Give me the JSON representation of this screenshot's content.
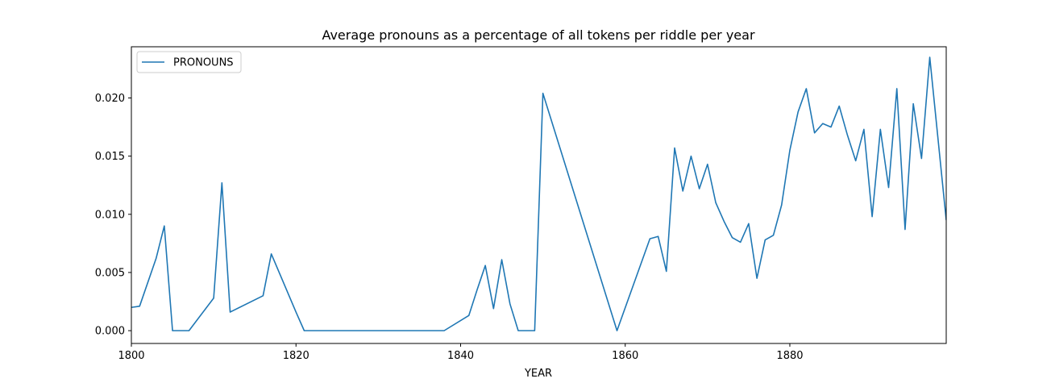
{
  "chart_data": {
    "type": "line",
    "title": "Average pronouns as a percentage of all tokens per riddle per year",
    "xlabel": "YEAR",
    "ylabel": "",
    "xlim": [
      1800,
      1899
    ],
    "ylim": [
      -0.0011,
      0.0244
    ],
    "x_ticks": [
      1800,
      1820,
      1840,
      1860,
      1880
    ],
    "y_ticks": [
      0.0,
      0.005,
      0.01,
      0.015,
      0.02
    ],
    "y_tick_labels": [
      "0.000",
      "0.005",
      "0.010",
      "0.015",
      "0.020"
    ],
    "grid": false,
    "legend": {
      "position": "top-left",
      "entries": [
        "PRONOUNS"
      ]
    },
    "colors": {
      "series": "#1f77b4"
    },
    "series": [
      {
        "name": "PRONOUNS",
        "x": [
          1800,
          1801,
          1803,
          1804,
          1805,
          1807,
          1810,
          1811,
          1812,
          1816,
          1817,
          1820,
          1821,
          1838,
          1841,
          1842,
          1843,
          1844,
          1845,
          1846,
          1847,
          1849,
          1850,
          1859,
          1863,
          1864,
          1865,
          1866,
          1867,
          1868,
          1869,
          1870,
          1871,
          1872,
          1873,
          1874,
          1875,
          1876,
          1877,
          1878,
          1879,
          1880,
          1881,
          1882,
          1883,
          1884,
          1885,
          1886,
          1887,
          1888,
          1889,
          1890,
          1891,
          1892,
          1893,
          1894,
          1895,
          1896,
          1897,
          1899
        ],
        "values": [
          0.002,
          0.0021,
          0.0062,
          0.009,
          0.0,
          0.0,
          0.0028,
          0.0127,
          0.0016,
          0.003,
          0.0066,
          0.0016,
          0.0,
          0.0,
          0.0013,
          0.0035,
          0.0056,
          0.0019,
          0.0061,
          0.0023,
          0.0,
          0.0,
          0.0204,
          0.0,
          0.0079,
          0.0081,
          0.0051,
          0.0157,
          0.012,
          0.015,
          0.0122,
          0.0143,
          0.011,
          0.0094,
          0.008,
          0.0076,
          0.0092,
          0.0045,
          0.0078,
          0.0082,
          0.0108,
          0.0155,
          0.0188,
          0.0208,
          0.017,
          0.0178,
          0.0175,
          0.0193,
          0.0168,
          0.0146,
          0.0173,
          0.0098,
          0.0173,
          0.0123,
          0.0208,
          0.0087,
          0.0195,
          0.0148,
          0.0235,
          0.0095
        ]
      }
    ]
  }
}
